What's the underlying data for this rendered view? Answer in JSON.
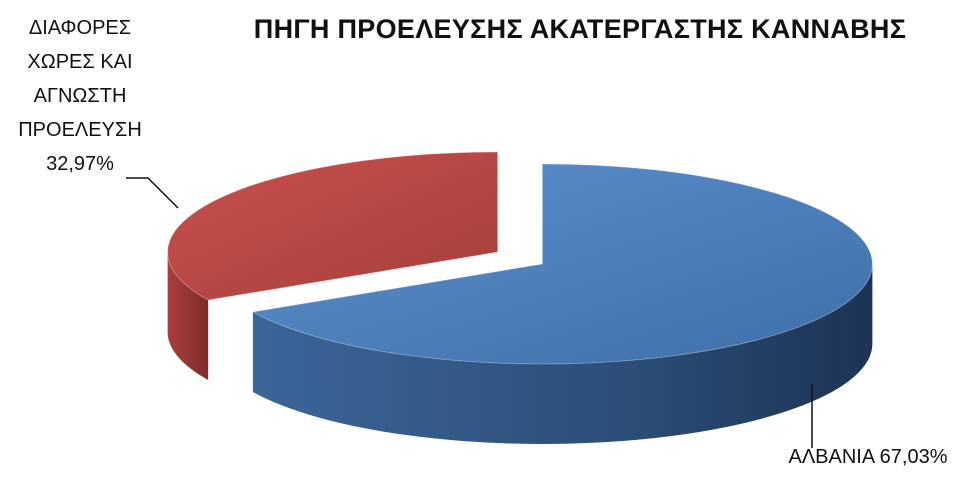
{
  "chart_data": {
    "type": "pie",
    "title": "ΠΗΓΗ ΠΡΟΕΛΕΥΣΗΣ ΑΚΑΤΕΡΓΑΣΤΗΣ ΚΑΝΝΑΒΗΣ",
    "slices": [
      {
        "label_lines": [
          "ΑΛΒΑΝΙΑ 67,03%"
        ],
        "value": 67.03,
        "color": "#4a7ebb"
      },
      {
        "label_lines": [
          "ΔΙΑΦΟΡΕΣ",
          "ΧΩΡΕΣ ΚΑΙ",
          "ΑΓΝΩΣΤΗ",
          "ΠΡΟΕΛΕΥΣΗ",
          "32,97%"
        ],
        "value": 32.97,
        "color": "#be4b48"
      }
    ],
    "style": "3d-exploded"
  }
}
